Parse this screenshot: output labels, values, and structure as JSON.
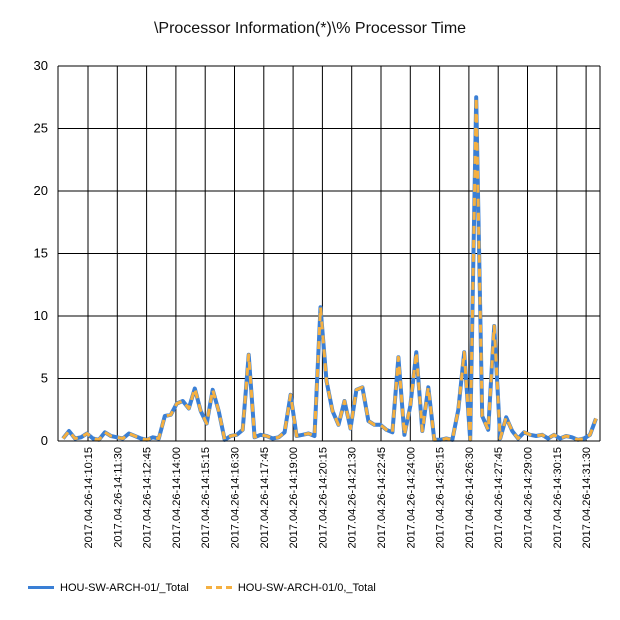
{
  "chart_data": {
    "type": "line",
    "title": "\\Processor Information(*)\\% Processor Time",
    "xlabel": "",
    "ylabel": "",
    "ylim": [
      0,
      30
    ],
    "yticks": [
      0,
      5,
      10,
      15,
      20,
      25,
      30
    ],
    "grid": true,
    "legend_position": "bottom",
    "x_tick_labels": [
      "2017.04.26-14:10:15",
      "2017.04.26-14:11:30",
      "2017.04.26-14:12:45",
      "2017.04.26-14:14:00",
      "2017.04.26-14:15:15",
      "2017.04.26-14:16:30",
      "2017.04.26-14:17:45",
      "2017.04.26-14:19:00",
      "2017.04.26-14:20:15",
      "2017.04.26-14:21:30",
      "2017.04.26-14:22:45",
      "2017.04.26-14:24:00",
      "2017.04.26-14:25:15",
      "2017.04.26-14:26:30",
      "2017.04.26-14:27:45",
      "2017.04.26-14:29:00",
      "2017.04.26-14:30:15",
      "2017.04.26-14:31:30"
    ],
    "series": [
      {
        "name": "HOU-SW-ARCH-01/_Total",
        "color": "#3a7fd5",
        "style": "solid",
        "values": [
          0.2,
          0.8,
          0.2,
          0.3,
          0.6,
          0.2,
          0.1,
          0.7,
          0.4,
          0.3,
          0.2,
          0.6,
          0.4,
          0.2,
          0.1,
          0.3,
          0.2,
          2.0,
          2.1,
          3.0,
          3.2,
          2.6,
          4.2,
          2.4,
          1.4,
          4.1,
          2.4,
          0.1,
          0.4,
          0.5,
          0.9,
          6.9,
          0.3,
          0.5,
          0.4,
          0.2,
          0.3,
          0.7,
          3.7,
          0.4,
          0.5,
          0.6,
          0.4,
          10.7,
          4.8,
          2.4,
          1.3,
          3.2,
          1.0,
          4.1,
          4.3,
          1.6,
          1.3,
          1.3,
          0.9,
          0.7,
          6.7,
          0.5,
          2.8,
          7.1,
          0.8,
          4.3,
          0.1,
          0.1,
          0.2,
          0.1,
          2.5,
          7.1,
          0.1,
          27.5,
          2.0,
          0.9,
          9.2,
          0.2,
          1.9,
          0.8,
          0.2,
          0.7,
          0.5,
          0.4,
          0.5,
          0.2,
          0.5,
          0.2,
          0.4,
          0.3,
          0.1,
          0.2,
          0.5,
          1.8
        ]
      },
      {
        "name": "HOU-SW-ARCH-01/0,_Total",
        "color": "#f5b041",
        "style": "dashed",
        "values": [
          0.2,
          0.8,
          0.2,
          0.3,
          0.6,
          0.2,
          0.1,
          0.7,
          0.4,
          0.3,
          0.2,
          0.6,
          0.4,
          0.2,
          0.1,
          0.3,
          0.2,
          2.0,
          2.1,
          3.0,
          3.2,
          2.6,
          4.2,
          2.4,
          1.4,
          4.1,
          2.4,
          0.1,
          0.4,
          0.5,
          0.9,
          6.9,
          0.3,
          0.5,
          0.4,
          0.2,
          0.3,
          0.7,
          3.7,
          0.4,
          0.5,
          0.6,
          0.4,
          10.7,
          4.8,
          2.4,
          1.3,
          3.2,
          1.0,
          4.1,
          4.3,
          1.6,
          1.3,
          1.3,
          0.9,
          0.7,
          6.7,
          0.5,
          2.8,
          7.1,
          0.8,
          4.3,
          0.1,
          0.1,
          0.2,
          0.1,
          2.5,
          7.1,
          0.1,
          27.5,
          2.0,
          0.9,
          9.2,
          0.2,
          1.9,
          0.8,
          0.2,
          0.7,
          0.5,
          0.4,
          0.5,
          0.2,
          0.5,
          0.2,
          0.4,
          0.3,
          0.1,
          0.2,
          0.5,
          1.8
        ]
      }
    ]
  }
}
